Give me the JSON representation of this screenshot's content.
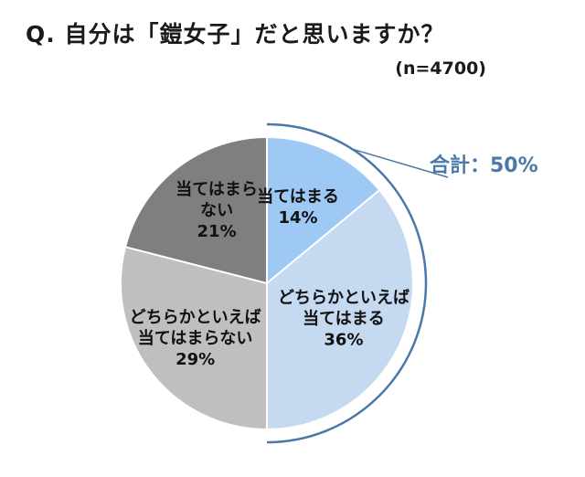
{
  "chart_data": {
    "type": "pie",
    "title": "Q. 自分は「鎧女子」だと思いますか？",
    "subtitle": "(n=4700)",
    "slices": [
      {
        "label_lines": [
          "当てはまる"
        ],
        "value": 14,
        "value_label": "14%",
        "color": "#9ec9f5"
      },
      {
        "label_lines": [
          "どちらかといえば",
          "当てはまる"
        ],
        "value": 36,
        "value_label": "36%",
        "color": "#c5d9f0"
      },
      {
        "label_lines": [
          "どちらかといえば",
          "当てはまらない"
        ],
        "value": 29,
        "value_label": "29%",
        "color": "#bfbfbf"
      },
      {
        "label_lines": [
          "当てはまら",
          "ない"
        ],
        "value": 21,
        "value_label": "21%",
        "color": "#7f7f7f"
      }
    ],
    "annotation": {
      "text": "合計：50%",
      "color": "#4a78a8",
      "covers_slices": [
        0,
        1
      ]
    },
    "start_angle": "12 o'clock",
    "direction": "clockwise"
  }
}
